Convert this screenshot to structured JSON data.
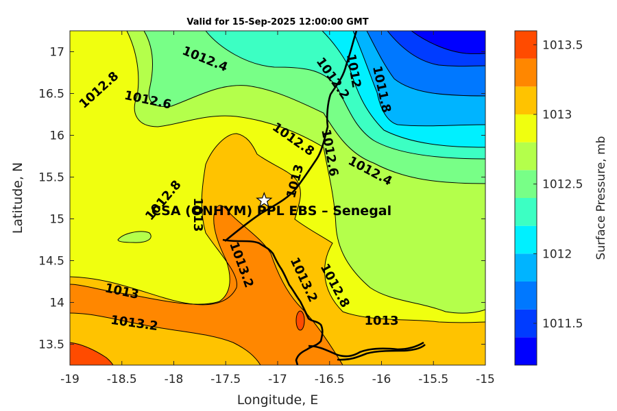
{
  "chart_data": {
    "type": "heatmap",
    "title": "Valid for 15-Sep-2025 12:00:00 GMT",
    "xlabel": "Longitude, E",
    "ylabel": "Latitude, N",
    "xlim": [
      -19,
      -15
    ],
    "ylim": [
      13.25,
      17.25
    ],
    "x_ticks": [
      -19,
      -18.5,
      -18,
      -17.5,
      -17,
      -16.5,
      -16,
      -15.5,
      -15
    ],
    "y_ticks": [
      13.5,
      14,
      14.5,
      15,
      15.5,
      16,
      16.5,
      17
    ],
    "x_tick_labels": [
      "-19",
      "-18.5",
      "-18",
      "-17.5",
      "-17",
      "-16.5",
      "-16",
      "-15.5",
      "-15"
    ],
    "y_tick_labels": [
      "13.5",
      "14",
      "14.5",
      "15",
      "15.5",
      "16",
      "16.5",
      "17"
    ],
    "colorbar": {
      "label": "Surface Pressure, mb",
      "range": [
        1011.2,
        1013.6
      ],
      "levels": [
        1011.2,
        1011.4,
        1011.6,
        1011.8,
        1012.0,
        1012.2,
        1012.4,
        1012.6,
        1012.8,
        1013.0,
        1013.2,
        1013.4,
        1013.6
      ],
      "tick_values": [
        1011.5,
        1012,
        1012.5,
        1013,
        1013.5
      ],
      "tick_labels": [
        "1011.5",
        "1012",
        "1012.5",
        "1013",
        "1013.5"
      ],
      "colors": [
        "#0000ff",
        "#003cff",
        "#0078ff",
        "#00b4ff",
        "#00f0ff",
        "#3cffc3",
        "#78ff87",
        "#b4ff4b",
        "#f0ff0f",
        "#ffc300",
        "#ff8700",
        "#ff4b00",
        "#ff0f00"
      ]
    },
    "contour_labels": [
      {
        "text": "1012.8",
        "lon": -18.72,
        "lat": 16.54,
        "angle": -42
      },
      {
        "text": "1012.4",
        "lon": -17.7,
        "lat": 16.91,
        "angle": 22
      },
      {
        "text": "1012.6",
        "lon": -18.25,
        "lat": 16.42,
        "angle": 12
      },
      {
        "text": "1012.2",
        "lon": -16.47,
        "lat": 16.68,
        "angle": 55
      },
      {
        "text": "1012",
        "lon": -16.27,
        "lat": 16.77,
        "angle": 80
      },
      {
        "text": "1011.8",
        "lon": -16.0,
        "lat": 16.55,
        "angle": 78
      },
      {
        "text": "1012.8",
        "lon": -16.85,
        "lat": 15.95,
        "angle": 35
      },
      {
        "text": "1012.6",
        "lon": -16.5,
        "lat": 15.79,
        "angle": 80
      },
      {
        "text": "1012.4",
        "lon": -16.11,
        "lat": 15.57,
        "angle": 28
      },
      {
        "text": "1013",
        "lon": -16.83,
        "lat": 15.45,
        "angle": -75
      },
      {
        "text": "1012.8",
        "lon": -18.1,
        "lat": 15.22,
        "angle": -50
      },
      {
        "text": "1013",
        "lon": -17.77,
        "lat": 15.05,
        "angle": 90
      },
      {
        "text": "1013.2",
        "lon": -17.35,
        "lat": 14.45,
        "angle": 70
      },
      {
        "text": "1013.2",
        "lon": -16.75,
        "lat": 14.27,
        "angle": 65
      },
      {
        "text": "1012.8",
        "lon": -16.45,
        "lat": 14.2,
        "angle": 62
      },
      {
        "text": "1013",
        "lon": -18.5,
        "lat": 14.13,
        "angle": 12
      },
      {
        "text": "1013.2",
        "lon": -18.38,
        "lat": 13.75,
        "angle": 8
      },
      {
        "text": "1013",
        "lon": -16.0,
        "lat": 13.78,
        "angle": 0
      }
    ],
    "station": {
      "name": "CSA (ONHYM) PPL EBS  – Senegal",
      "lon": -17.13,
      "lat": 15.22
    }
  }
}
